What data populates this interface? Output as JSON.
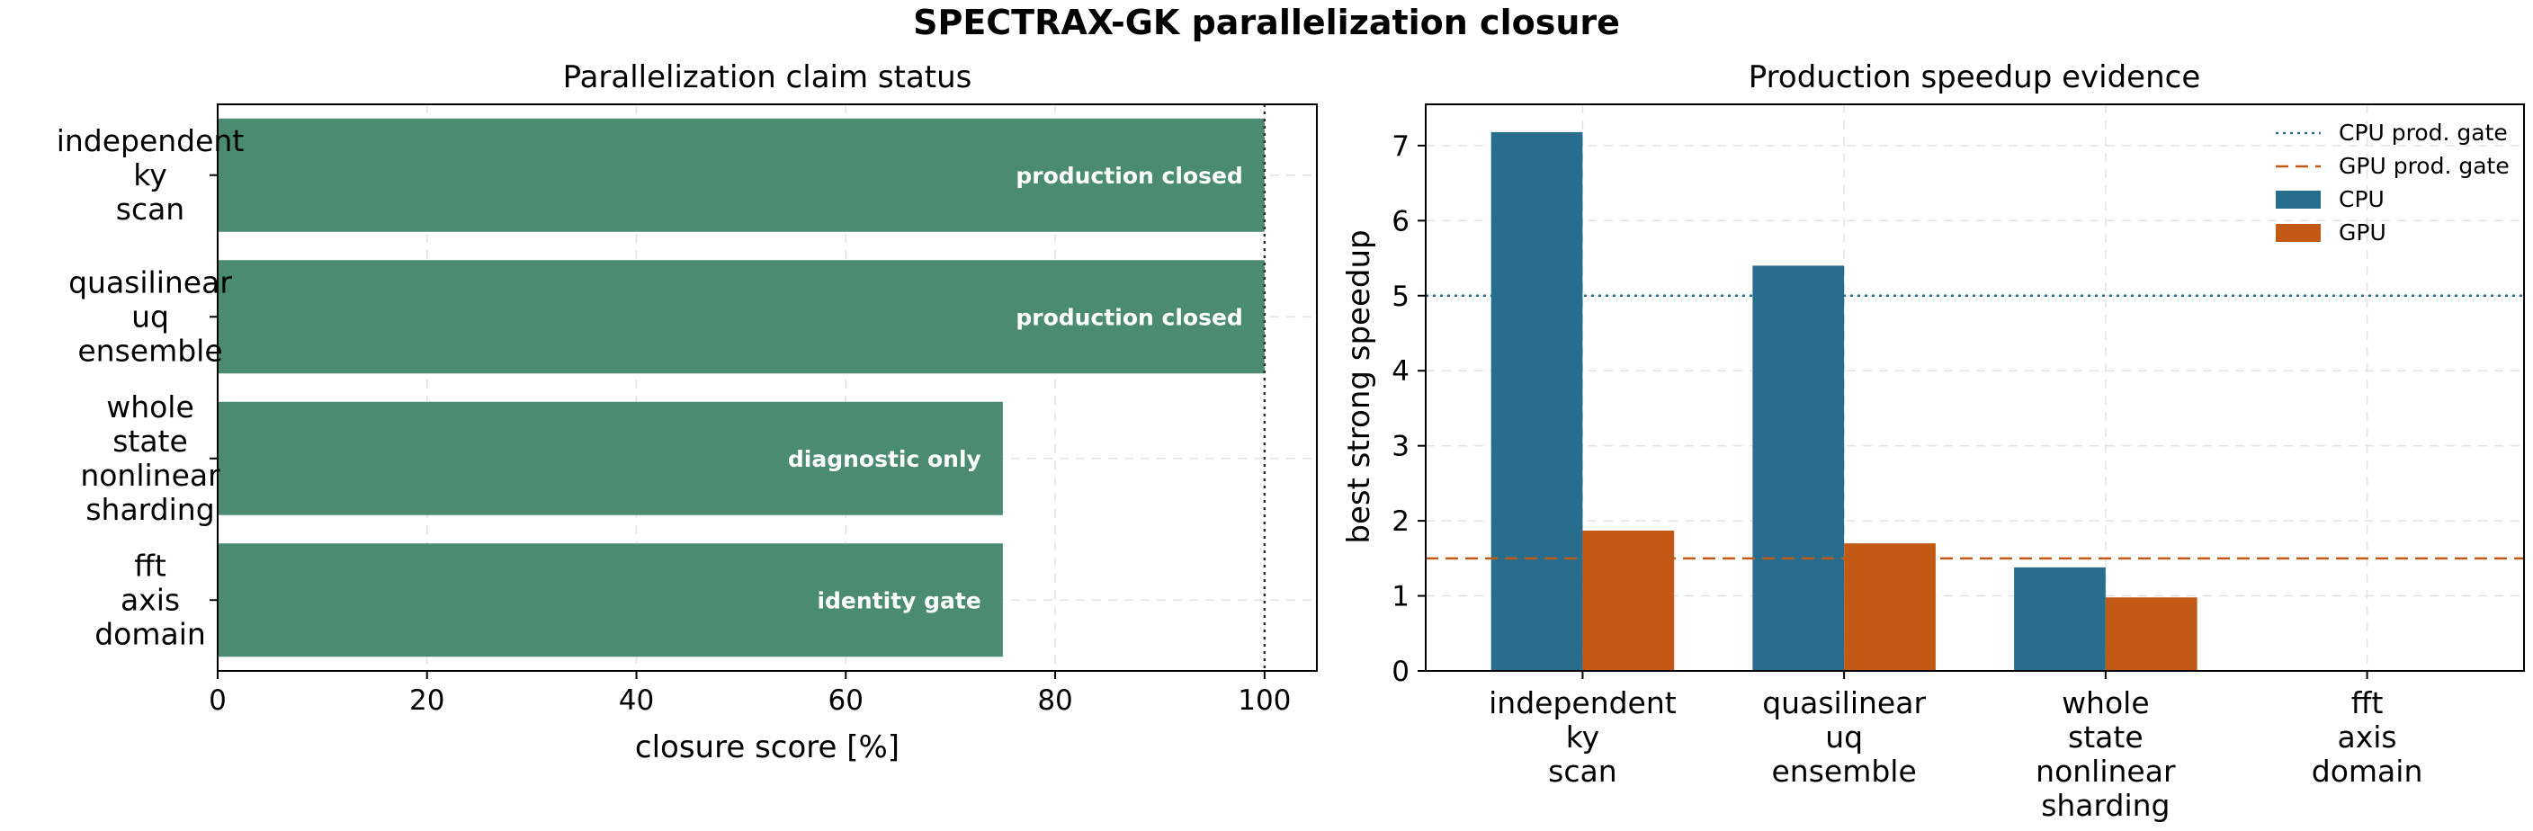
{
  "figure": {
    "suptitle": "SPECTRAX-GK parallelization closure"
  },
  "colors": {
    "closure_bar": "#4a8b72",
    "cpu": "#276d8e",
    "gpu": "#c25a16",
    "grid": "#e3e3e3",
    "axis": "#000000"
  },
  "chart_data": [
    {
      "type": "bar",
      "orientation": "horizontal",
      "title": "Parallelization claim status",
      "xlabel": "closure score [%]",
      "ylabel": "",
      "xlim": [
        0,
        105
      ],
      "xticks": [
        "0",
        "20",
        "40",
        "60",
        "80",
        "100"
      ],
      "grid": true,
      "categories": [
        [
          "independent",
          "ky",
          "scan"
        ],
        [
          "quasilinear",
          "uq",
          "ensemble"
        ],
        [
          "whole",
          "state",
          "nonlinear",
          "sharding"
        ],
        [
          "fft",
          "axis",
          "domain"
        ]
      ],
      "values": [
        100,
        100,
        75,
        75
      ],
      "bar_labels": [
        "production closed",
        "production closed",
        "diagnostic only",
        "identity gate"
      ],
      "reference_line": {
        "x": 100,
        "style": "dotted"
      }
    },
    {
      "type": "bar",
      "orientation": "vertical",
      "title": "Production speedup evidence",
      "xlabel": "",
      "ylabel": "best strong speedup",
      "ylim": [
        0,
        7.55
      ],
      "yticks": [
        "0",
        "1",
        "2",
        "3",
        "4",
        "5",
        "6",
        "7"
      ],
      "grid": true,
      "legend_position": "top-right",
      "categories": [
        [
          "independent",
          "ky",
          "scan"
        ],
        [
          "quasilinear",
          "uq",
          "ensemble"
        ],
        [
          "whole",
          "state",
          "nonlinear",
          "sharding"
        ],
        [
          "fft",
          "axis",
          "domain"
        ]
      ],
      "series": [
        {
          "name": "CPU",
          "values": [
            7.18,
            5.4,
            1.38,
            0
          ]
        },
        {
          "name": "GPU",
          "values": [
            1.87,
            1.7,
            0.98,
            0
          ]
        }
      ],
      "reference_lines": [
        {
          "name": "CPU prod. gate",
          "y": 5.0,
          "style": "dotted"
        },
        {
          "name": "GPU prod. gate",
          "y": 1.5,
          "style": "dashed"
        }
      ]
    }
  ]
}
